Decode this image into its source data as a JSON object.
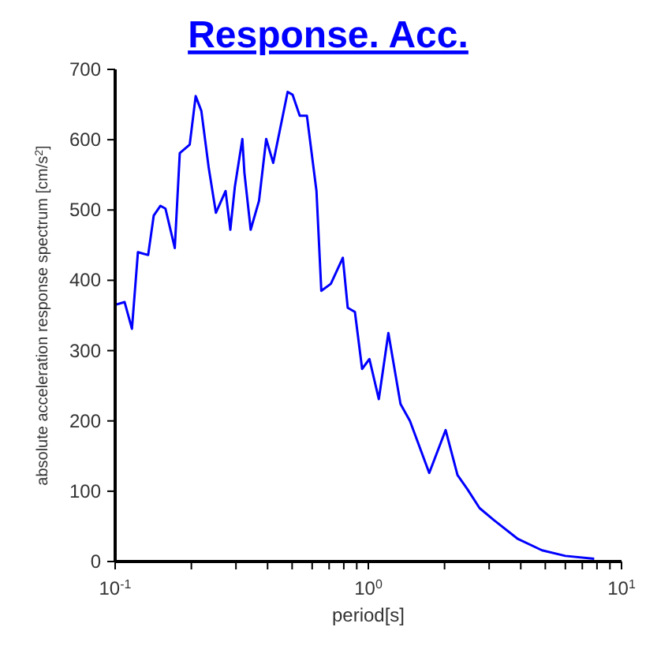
{
  "chart_data": {
    "type": "line",
    "title": "Response. Acc.",
    "xlabel": "period[s]",
    "ylabel": "absolute acceleration response spectrum [cm/s$^{2}$]",
    "log": "x",
    "xlim": [
      0.1,
      10
    ],
    "ylim": [
      0,
      700
    ],
    "xticks": [
      {
        "value": 0.1,
        "label": "10$^{-1}$"
      },
      {
        "value": 0.2,
        "label": null
      },
      {
        "value": 0.3,
        "label": null
      },
      {
        "value": 0.4,
        "label": null
      },
      {
        "value": 0.5,
        "label": null
      },
      {
        "value": 0.6,
        "label": null
      },
      {
        "value": 0.7,
        "label": null
      },
      {
        "value": 0.8,
        "label": null
      },
      {
        "value": 0.9,
        "label": null
      },
      {
        "value": 1,
        "label": "10$^{0}$"
      },
      {
        "value": 2,
        "label": null
      },
      {
        "value": 3,
        "label": null
      },
      {
        "value": 4,
        "label": null
      },
      {
        "value": 5,
        "label": null
      },
      {
        "value": 6,
        "label": null
      },
      {
        "value": 7,
        "label": null
      },
      {
        "value": 8,
        "label": null
      },
      {
        "value": 9,
        "label": null
      },
      {
        "value": 10,
        "label": "10$^{1}$"
      }
    ],
    "yticks": [
      0,
      100,
      200,
      300,
      400,
      500,
      600,
      700
    ],
    "legend": false,
    "marker": "none",
    "line_style": "solid",
    "x": [
      0.1,
      0.109,
      0.1165,
      0.123,
      0.135,
      0.142,
      0.151,
      0.158,
      0.172,
      0.18,
      0.197,
      0.208,
      0.219,
      0.234,
      0.25,
      0.273,
      0.285,
      0.297,
      0.318,
      0.324,
      0.343,
      0.37,
      0.395,
      0.421,
      0.48,
      0.502,
      0.536,
      0.572,
      0.624,
      0.652,
      0.711,
      0.793,
      0.829,
      0.885,
      0.945,
      1.01,
      1.1,
      1.2,
      1.34,
      1.46,
      1.74,
      2.02,
      2.25,
      2.46,
      2.75,
      3.13,
      3.9,
      4.85,
      6.0,
      7.8
    ],
    "series": [
      {
        "color": "#0000ff",
        "values": [
          365,
          369,
          331,
          440,
          436,
          492,
          506,
          502,
          446,
          581,
          593,
          662,
          641,
          561,
          496,
          527,
          472,
          533,
          601,
          553,
          472,
          513,
          601,
          567,
          668,
          664,
          634,
          634,
          527,
          385,
          395,
          432,
          361,
          355,
          274,
          288,
          231,
          325,
          224,
          200,
          126,
          187,
          123,
          103,
          76,
          59,
          32,
          16,
          8,
          4
        ]
      }
    ]
  }
}
